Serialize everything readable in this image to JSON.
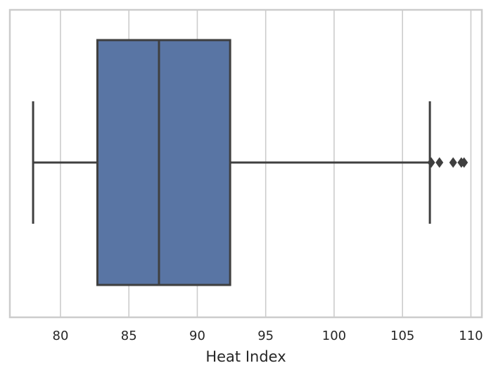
{
  "chart_data": {
    "type": "box",
    "orientation": "horizontal",
    "title": "",
    "xlabel": "Heat Index",
    "ylabel": "",
    "xlim": [
      76.3,
      110.8
    ],
    "x_ticks": [
      80,
      85,
      90,
      95,
      100,
      105,
      110
    ],
    "grid": "vertical",
    "box": {
      "whisker_low": 78.0,
      "q1": 82.7,
      "median": 87.2,
      "q3": 92.4,
      "whisker_high": 107.0,
      "outliers": [
        107.1,
        107.7,
        108.7,
        109.3,
        109.5
      ]
    },
    "colors": {
      "box_fill": "#5975a4",
      "line": "#3f3f3f",
      "grid": "#cccccc",
      "frame": "#cccccc"
    }
  }
}
